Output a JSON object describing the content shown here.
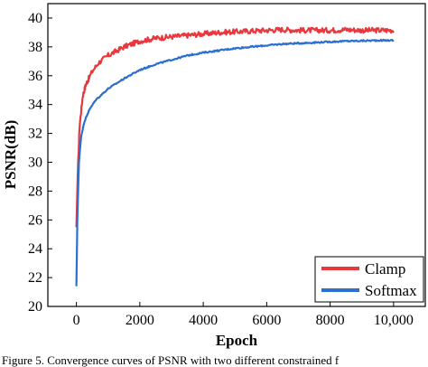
{
  "chart_data": {
    "type": "line",
    "xlabel": "Epoch",
    "ylabel": "PSNR(dB)",
    "xlim": [
      -900,
      11000
    ],
    "ylim": [
      20,
      41
    ],
    "x_ticks": [
      0,
      2000,
      4000,
      6000,
      8000,
      10000
    ],
    "x_tick_labels": [
      "0",
      "2000",
      "4000",
      "6000",
      "8000",
      "10,000"
    ],
    "y_ticks": [
      20,
      22,
      24,
      26,
      28,
      30,
      32,
      34,
      36,
      38,
      40
    ],
    "y_tick_labels": [
      "20",
      "22",
      "24",
      "26",
      "28",
      "30",
      "32",
      "34",
      "36",
      "38",
      "40"
    ],
    "legend_position": "bottom-right",
    "series": [
      {
        "name": "Clamp",
        "color": "#e8383d",
        "noise": 0.18,
        "x": [
          0,
          40,
          100,
          200,
          300,
          500,
          700,
          1000,
          1500,
          2000,
          2500,
          3000,
          3500,
          4000,
          4500,
          5000,
          5500,
          6000,
          6500,
          7000,
          7500,
          8000,
          8500,
          9000,
          9500,
          10000
        ],
        "y": [
          25.5,
          29.0,
          32.5,
          34.6,
          35.4,
          36.3,
          36.9,
          37.4,
          38.0,
          38.4,
          38.6,
          38.7,
          38.8,
          38.9,
          39.0,
          39.05,
          39.1,
          39.15,
          39.2,
          39.15,
          39.15,
          39.15,
          39.2,
          39.15,
          39.15,
          39.15
        ]
      },
      {
        "name": "Softmax",
        "color": "#2b6fd1",
        "noise": 0.05,
        "x": [
          0,
          30,
          80,
          150,
          250,
          400,
          600,
          800,
          1000,
          1500,
          2000,
          2500,
          3000,
          3500,
          4000,
          4500,
          5000,
          5500,
          6000,
          6500,
          7000,
          7500,
          8000,
          8500,
          9000,
          9500,
          10000
        ],
        "y": [
          21.4,
          26.0,
          30.0,
          31.8,
          32.8,
          33.6,
          34.3,
          34.7,
          35.1,
          35.8,
          36.4,
          36.8,
          37.1,
          37.4,
          37.6,
          37.75,
          37.9,
          38.0,
          38.1,
          38.2,
          38.25,
          38.3,
          38.35,
          38.4,
          38.42,
          38.45,
          38.45
        ]
      }
    ]
  },
  "caption": "Figure 5. Convergence curves of PSNR with two different constrained f"
}
